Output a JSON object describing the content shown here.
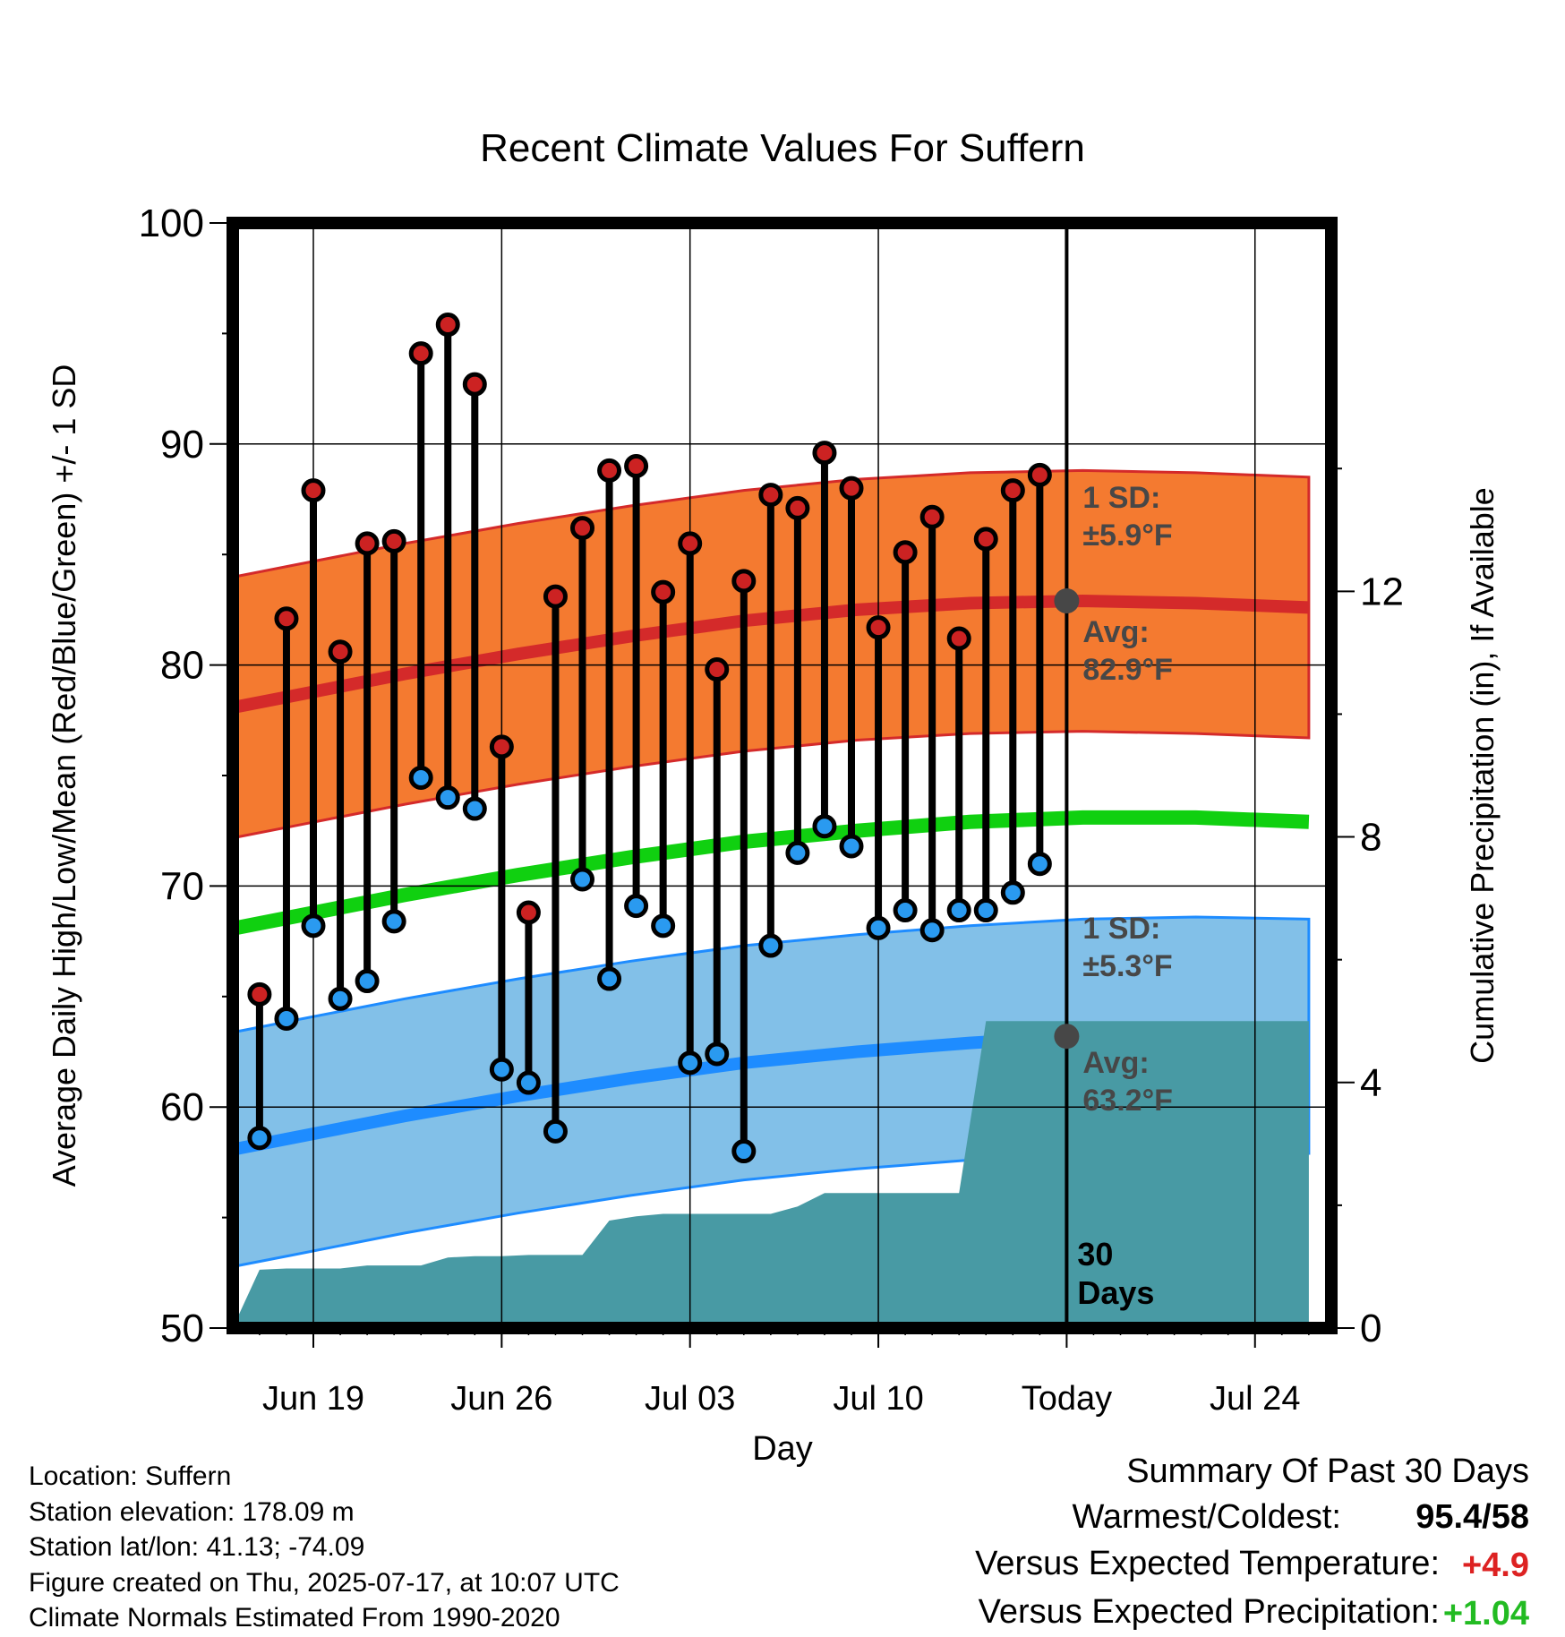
{
  "chart_data": {
    "type": "line",
    "title": "Recent Climate Values For Suffern",
    "xlabel": "Day",
    "ylabel": "Average Daily High/Low/Mean (Red/Blue/Green) +/- 1 SD",
    "y2label": "Cumulative Precipitation (in), If Available",
    "ylim": [
      50,
      100
    ],
    "y_ticks": [
      50,
      60,
      70,
      80,
      90,
      100
    ],
    "y2lim": [
      0,
      18
    ],
    "y2_ticks": [
      0,
      4,
      8,
      12
    ],
    "x_ticks": [
      "Jun 19",
      "Jun 26",
      "Jul 03",
      "Jul 10",
      "Today",
      "Jul 24"
    ],
    "grid": true,
    "dates": [
      "2025-06-17",
      "2025-06-18",
      "2025-06-19",
      "2025-06-20",
      "2025-06-21",
      "2025-06-22",
      "2025-06-23",
      "2025-06-24",
      "2025-06-25",
      "2025-06-26",
      "2025-06-27",
      "2025-06-28",
      "2025-06-29",
      "2025-06-30",
      "2025-07-01",
      "2025-07-02",
      "2025-07-03",
      "2025-07-04",
      "2025-07-05",
      "2025-07-06",
      "2025-07-07",
      "2025-07-08",
      "2025-07-09",
      "2025-07-10",
      "2025-07-11",
      "2025-07-12",
      "2025-07-13",
      "2025-07-14",
      "2025-07-15",
      "2025-07-16"
    ],
    "daily_high": [
      65.1,
      82.1,
      87.9,
      80.6,
      85.5,
      85.6,
      94.1,
      95.4,
      92.7,
      76.3,
      68.8,
      83.1,
      86.2,
      88.8,
      89.0,
      83.3,
      85.5,
      79.8,
      83.8,
      87.7,
      87.1,
      89.6,
      88.0,
      81.7,
      85.1,
      86.7,
      81.2,
      85.7,
      87.9,
      88.6
    ],
    "daily_low": [
      58.6,
      64.0,
      68.2,
      64.9,
      65.7,
      68.4,
      74.9,
      74.0,
      73.5,
      61.7,
      61.1,
      58.9,
      70.3,
      65.8,
      69.1,
      68.2,
      62.0,
      62.4,
      58.0,
      67.3,
      71.5,
      72.7,
      71.8,
      68.1,
      68.9,
      68.0,
      68.9,
      68.9,
      69.7,
      71.0
    ],
    "normals": {
      "start_date": "2025-06-14",
      "end_date": "2025-07-26",
      "high_avg": [
        77.6,
        78.6,
        79.6,
        80.5,
        81.3,
        82.0,
        82.5,
        82.8,
        82.9,
        82.8,
        82.6
      ],
      "low_avg": [
        57.6,
        58.6,
        59.6,
        60.5,
        61.3,
        62.0,
        62.5,
        62.9,
        63.2,
        63.3,
        63.2
      ],
      "mean_avg": [
        67.6,
        68.6,
        69.6,
        70.5,
        71.3,
        72.0,
        72.5,
        72.9,
        73.1,
        73.1,
        72.9
      ],
      "high_sd": 5.9,
      "low_sd": 5.3
    },
    "cumulative_precip": {
      "dates": [
        "2025-06-15",
        "2025-06-16",
        "2025-06-17",
        "2025-06-18",
        "2025-06-19",
        "2025-06-20",
        "2025-06-21",
        "2025-06-22",
        "2025-06-23",
        "2025-06-24",
        "2025-06-25",
        "2025-06-26",
        "2025-06-27",
        "2025-06-28",
        "2025-06-29",
        "2025-06-30",
        "2025-07-01",
        "2025-07-02",
        "2025-07-03",
        "2025-07-04",
        "2025-07-05",
        "2025-07-06",
        "2025-07-07",
        "2025-07-08",
        "2025-07-09",
        "2025-07-10",
        "2025-07-11",
        "2025-07-12",
        "2025-07-13",
        "2025-07-14",
        "2025-07-15",
        "2025-07-16",
        "2025-07-17",
        "2025-07-26"
      ],
      "values": [
        null,
        0.0,
        0.95,
        0.97,
        0.97,
        0.97,
        1.02,
        1.02,
        1.02,
        1.15,
        1.17,
        1.17,
        1.19,
        1.19,
        1.19,
        1.75,
        1.82,
        1.86,
        1.86,
        1.86,
        1.86,
        1.86,
        1.98,
        2.2,
        2.2,
        2.2,
        2.2,
        2.2,
        2.2,
        5.0,
        5.0,
        5.0,
        5.0,
        5.0
      ]
    },
    "today_date": "2025-07-17",
    "today_high_avg": 82.9,
    "today_low_avg": 63.2,
    "annotations": {
      "high_sd_label": "1 SD:",
      "high_sd_value": "±5.9°F",
      "high_avg_label": "Avg:",
      "high_avg_value": "82.9°F",
      "low_sd_label": "1 SD:",
      "low_sd_value": "±5.3°F",
      "low_avg_label": "Avg:",
      "low_avg_value": "63.2°F",
      "days_line1": "30",
      "days_line2": "Days"
    },
    "colors": {
      "high_band": "#f47a30",
      "high_line": "#d42a2a",
      "low_band": "#82c0e8",
      "low_line": "#1e8cff",
      "mean_line": "#10d010",
      "precip": "#489aa4",
      "high_dot": "#cc2222",
      "low_dot": "#2a9af0",
      "annotation_text": "#474747"
    }
  },
  "info": {
    "location": "Location: Suffern",
    "elevation": "Station elevation: 178.09 m",
    "latlon": "Station lat/lon: 41.13; -74.09",
    "created": "Figure created on Thu, 2025-07-17, at 10:07 UTC",
    "normals": "Climate Normals Estimated From 1990-2020"
  },
  "summary": {
    "title": "Summary Of Past 30 Days",
    "warmest_label": "Warmest/Coldest:",
    "warmest_value": "95.4/58",
    "temp_label": "Versus Expected Temperature:",
    "temp_value": "+4.9",
    "temp_color": "#dd2222",
    "precip_label": "Versus Expected Precipitation:",
    "precip_value": "+1.04",
    "precip_color": "#22bb22"
  }
}
